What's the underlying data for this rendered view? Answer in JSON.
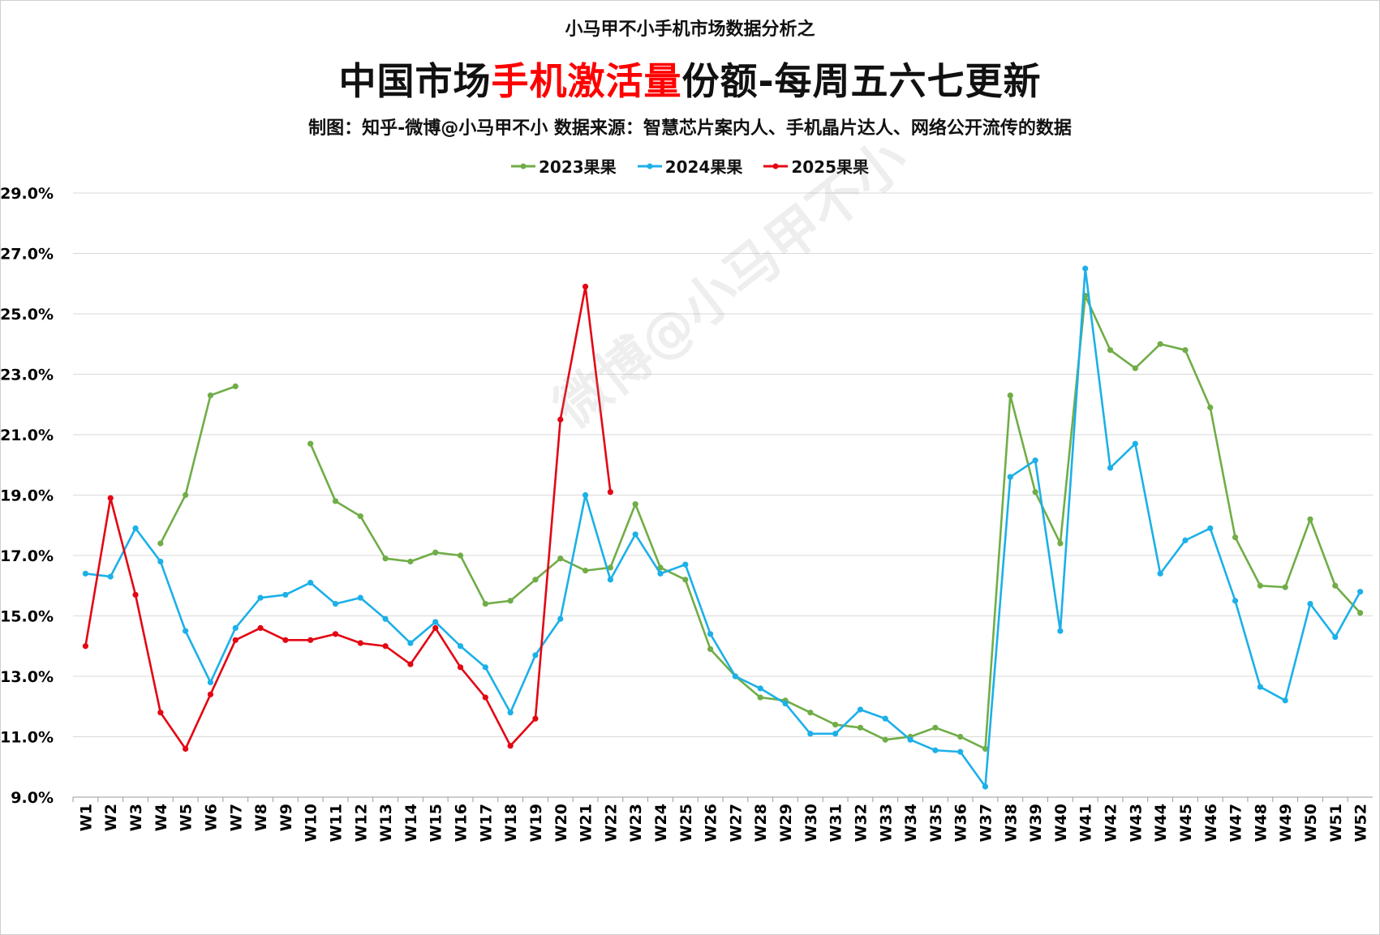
{
  "header": {
    "supertitle": "小马甲不小手机市场数据分析之",
    "title_part1": "中国市场",
    "title_highlight": "手机激活量",
    "title_part2": "份额-每周五六七更新",
    "subtitle": "制图：知乎-微博@小马甲不小  数据来源：智慧芯片案内人、手机晶片达人、网络公开流传的数据"
  },
  "watermark": "微博@小马甲不小",
  "chart_data": {
    "type": "line",
    "categories": [
      "W1",
      "W2",
      "W3",
      "W4",
      "W5",
      "W6",
      "W7",
      "W8",
      "W9",
      "W10",
      "W11",
      "W12",
      "W13",
      "W14",
      "W15",
      "W16",
      "W17",
      "W18",
      "W19",
      "W20",
      "W21",
      "W22",
      "W23",
      "W24",
      "W25",
      "W26",
      "W27",
      "W28",
      "W29",
      "W30",
      "W31",
      "W32",
      "W33",
      "W34",
      "W35",
      "W36",
      "W37",
      "W38",
      "W39",
      "W40",
      "W41",
      "W42",
      "W43",
      "W44",
      "W45",
      "W46",
      "W47",
      "W48",
      "W49",
      "W50",
      "W51",
      "W52"
    ],
    "y_tick_labels": [
      "9.0%",
      "11.0%",
      "13.0%",
      "15.0%",
      "17.0%",
      "19.0%",
      "21.0%",
      "23.0%",
      "25.0%",
      "27.0%",
      "29.0%"
    ],
    "ylim": [
      9.0,
      29.0
    ],
    "y_unit": "%",
    "grid": true,
    "legend_position": "top-center",
    "series": [
      {
        "name": "2023果果",
        "color": "#70ad47",
        "values": [
          null,
          null,
          null,
          17.4,
          19.0,
          22.3,
          22.6,
          null,
          null,
          20.7,
          18.8,
          18.3,
          16.9,
          16.8,
          17.1,
          17.0,
          15.4,
          15.5,
          16.2,
          16.9,
          16.5,
          16.6,
          18.7,
          16.6,
          16.2,
          13.9,
          13.0,
          12.3,
          12.2,
          11.8,
          11.4,
          11.3,
          10.9,
          11.0,
          11.3,
          11.0,
          10.6,
          22.3,
          19.1,
          17.4,
          25.6,
          23.8,
          23.2,
          24.0,
          23.8,
          21.9,
          17.6,
          16.0,
          15.95,
          18.2,
          16.0,
          15.1
        ]
      },
      {
        "name": "2024果果",
        "color": "#1cb0e8",
        "values": [
          16.4,
          16.3,
          17.9,
          16.8,
          14.5,
          12.8,
          14.6,
          15.6,
          15.7,
          16.1,
          15.4,
          15.6,
          14.9,
          14.1,
          14.8,
          14.0,
          13.3,
          11.8,
          13.7,
          14.9,
          19.0,
          16.2,
          17.7,
          16.4,
          16.7,
          14.4,
          13.0,
          12.6,
          12.1,
          11.1,
          11.1,
          11.9,
          11.6,
          10.9,
          10.55,
          10.5,
          9.35,
          19.6,
          20.15,
          14.5,
          26.5,
          19.9,
          20.7,
          16.4,
          17.5,
          17.9,
          15.5,
          12.65,
          12.2,
          15.4,
          14.3,
          15.8
        ]
      },
      {
        "name": "2025果果",
        "color": "#e30613",
        "values": [
          14.0,
          18.9,
          15.7,
          11.8,
          10.6,
          12.4,
          14.2,
          14.6,
          14.2,
          14.2,
          14.4,
          14.1,
          14.0,
          13.4,
          14.6,
          13.3,
          12.3,
          10.7,
          11.6,
          21.5,
          25.9,
          19.1,
          null,
          null,
          null,
          null,
          null,
          null,
          null,
          null,
          null,
          null,
          null,
          null,
          null,
          null,
          null,
          null,
          null,
          null,
          null,
          null,
          null,
          null,
          null,
          null,
          null,
          null,
          null,
          null,
          null,
          null
        ]
      }
    ]
  }
}
